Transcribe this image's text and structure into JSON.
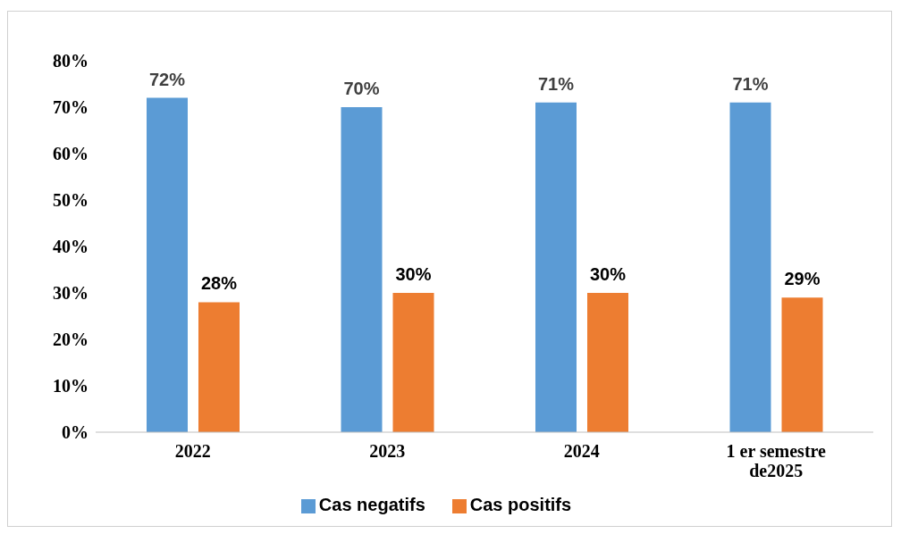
{
  "chart_data": {
    "type": "bar",
    "categories": [
      "2022",
      "2023",
      "2024",
      "1 er semestre de2025"
    ],
    "series": [
      {
        "name": "Cas negatifs",
        "color": "#5b9bd5",
        "values": [
          72,
          70,
          71,
          71
        ],
        "value_labels": [
          "72%",
          "70%",
          "71%",
          "71%"
        ]
      },
      {
        "name": "Cas positifs",
        "color": "#ed7d31",
        "values": [
          28,
          30,
          30,
          29
        ],
        "value_labels": [
          "28%",
          "30%",
          "30%",
          "29%"
        ]
      }
    ],
    "ylim": [
      0,
      80
    ],
    "yticks": [
      {
        "value": 0,
        "label": "0%"
      },
      {
        "value": 10,
        "label": "10%"
      },
      {
        "value": 20,
        "label": "20%"
      },
      {
        "value": 30,
        "label": "30%"
      },
      {
        "value": 40,
        "label": "40%"
      },
      {
        "value": 50,
        "label": "50%"
      },
      {
        "value": 60,
        "label": "60%"
      },
      {
        "value": 70,
        "label": "70%"
      },
      {
        "value": 80,
        "label": "80%"
      }
    ],
    "legend": "bottom",
    "grid": false
  }
}
